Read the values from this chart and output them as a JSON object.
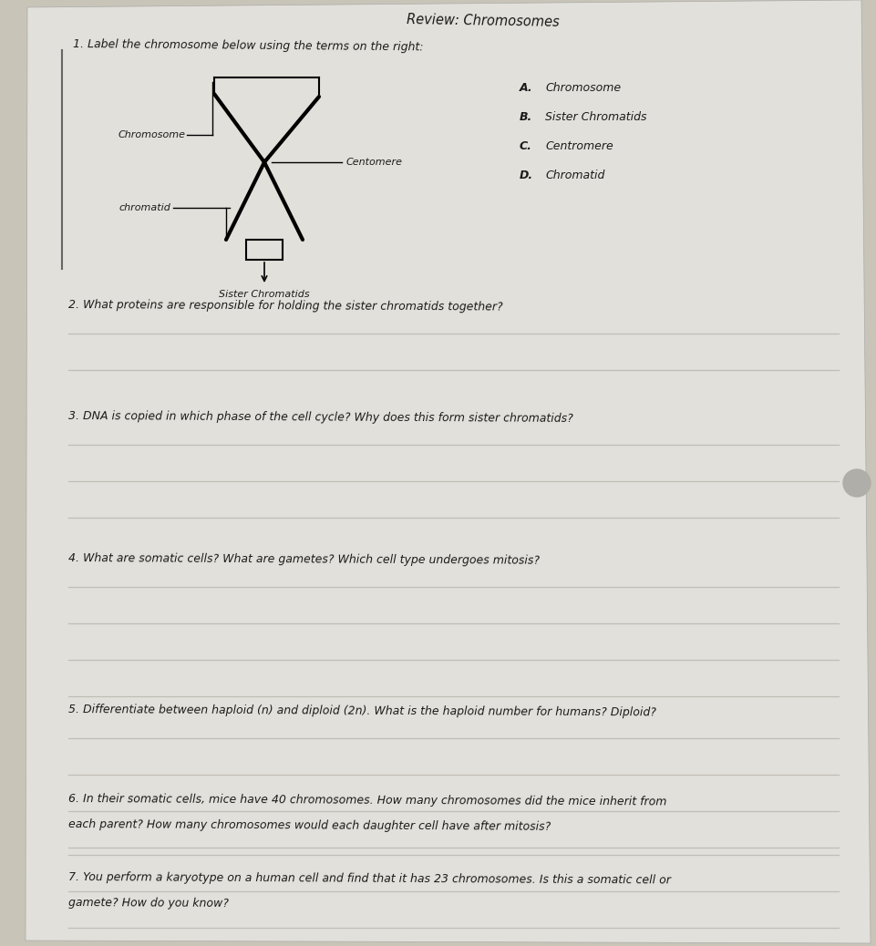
{
  "title": "Review: Chromosomes",
  "bg_color": "#c8c4b8",
  "paper_color": "#e2e0da",
  "question1": "1. Label the chromosome below using the terms on the right:",
  "terms": [
    [
      "A.",
      "Chromosome"
    ],
    [
      "B.",
      "Sister Chromatids"
    ],
    [
      "C.",
      "Centromere"
    ],
    [
      "D.",
      "Chromatid"
    ]
  ],
  "question2": "2. What proteins are responsible for holding the sister chromatids together?",
  "question3": "3. DNA is copied in which phase of the cell cycle? Why does this form sister chromatids?",
  "question4": "4. What are somatic cells? What are gametes? Which cell type undergoes mitosis?",
  "question5": "5. Differentiate between haploid (n) and diploid (2n). What is the haploid number for humans? Diploid?",
  "question6_line1": "6. In their somatic cells, mice have 40 chromosomes. How many chromosomes did the mice inherit from",
  "question6_line2": "each parent? How many chromosomes would each daughter cell have after mitosis?",
  "question7_line1": "7. You perform a karyotype on a human cell and find that it has 23 chromosomes. Is this a somatic cell or",
  "question7_line2": "gamete? How do you know?",
  "text_color": "#1a1a1a",
  "answer_line_color": "#c0bdb5",
  "border_line_color": "#666666"
}
